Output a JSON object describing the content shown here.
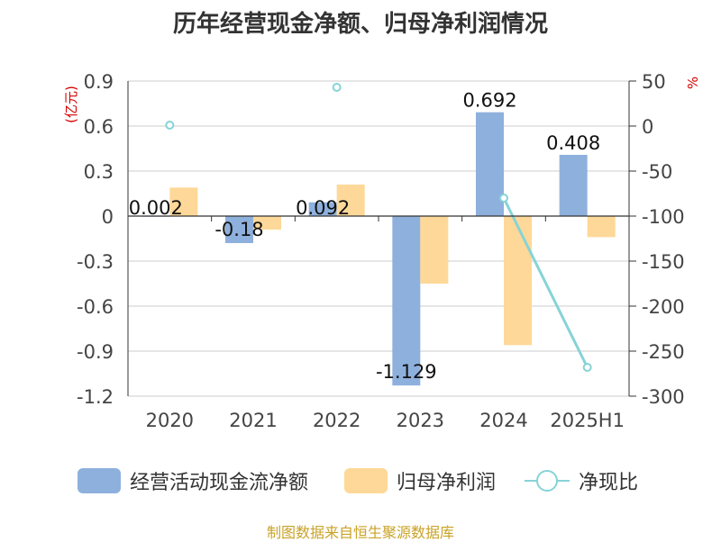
{
  "title": "历年经营现金净额、归母净利润情况",
  "source": "制图数据来自恒生聚源数据库",
  "colors": {
    "cash_flow": "#8eb0dd",
    "net_profit": "#fed898",
    "ratio": "#86d3d8",
    "unit_text": "#d40000",
    "source_text": "#c9a227",
    "axis": "#333333",
    "grid": "#cccccc"
  },
  "chart_data": {
    "type": "bar",
    "title": "历年经营现金净额、归母净利润情况",
    "categories": [
      "2020",
      "2021",
      "2022",
      "2023",
      "2024",
      "2025H1"
    ],
    "y_left": {
      "unit": "(亿元)",
      "ylim": [
        -1.2,
        0.9
      ],
      "ticks": [
        0.9,
        0.6,
        0.3,
        0,
        -0.3,
        -0.6,
        -0.9,
        -1.2
      ],
      "tick_labels": [
        "0.9",
        "0.6",
        "0.3",
        "0",
        "-0.3",
        "-0.6",
        "-0.9",
        "-1.2"
      ]
    },
    "y_right": {
      "unit": "%",
      "ylim": [
        -300,
        50
      ],
      "ticks": [
        50,
        0,
        -50,
        -100,
        -150,
        -200,
        -250,
        -300
      ],
      "tick_labels": [
        "50",
        "0",
        "-50",
        "-100",
        "-150",
        "-200",
        "-250",
        "-300"
      ]
    },
    "grid": true,
    "legend_position": "bottom",
    "series": [
      {
        "name": "经营活动现金流净额",
        "kind": "bar",
        "axis": "left",
        "values": [
          0.002,
          -0.18,
          0.092,
          -1.129,
          0.692,
          0.408
        ],
        "labels": [
          "0.002",
          "-0.18",
          "0.092",
          "-1.129",
          "0.692",
          "0.408"
        ]
      },
      {
        "name": "归母净利润",
        "kind": "bar",
        "axis": "left",
        "values": [
          0.19,
          -0.09,
          0.21,
          -0.45,
          -0.86,
          -0.14
        ]
      },
      {
        "name": "净现比",
        "kind": "line",
        "axis": "right",
        "values": [
          1,
          null,
          43,
          null,
          -80,
          -268
        ]
      }
    ]
  }
}
